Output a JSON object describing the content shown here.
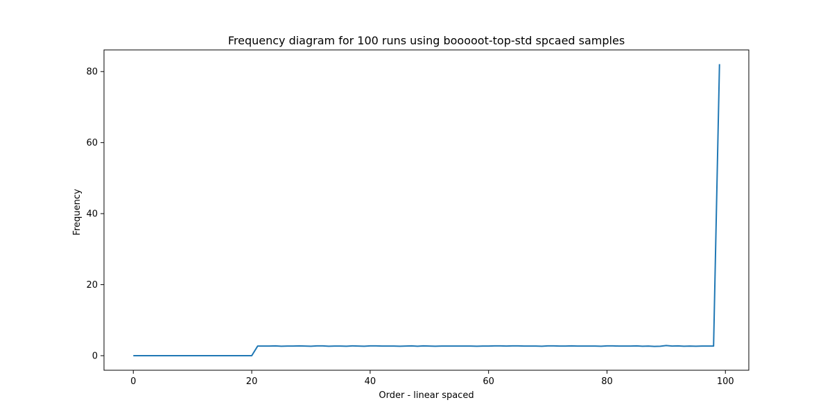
{
  "chart_data": {
    "type": "line",
    "title": "Frequency diagram for 100 runs using booooot-top-std spcaed samples",
    "xlabel": "Order - linear spaced",
    "ylabel": "Frequency",
    "xlim": [
      -4.95,
      103.95
    ],
    "ylim": [
      -4.1,
      86.1
    ],
    "x_ticks": [
      0,
      20,
      40,
      60,
      80,
      100
    ],
    "y_ticks": [
      0,
      20,
      40,
      60,
      80
    ],
    "grid": false,
    "legend": "none",
    "series": [
      {
        "color": "#1f77b4",
        "x": [
          0,
          1,
          2,
          3,
          4,
          5,
          6,
          7,
          8,
          9,
          10,
          11,
          12,
          13,
          14,
          15,
          16,
          17,
          18,
          19,
          20,
          21,
          22,
          23,
          24,
          25,
          26,
          27,
          28,
          29,
          30,
          31,
          32,
          33,
          34,
          35,
          36,
          37,
          38,
          39,
          40,
          41,
          42,
          43,
          44,
          45,
          46,
          47,
          48,
          49,
          50,
          51,
          52,
          53,
          54,
          55,
          56,
          57,
          58,
          59,
          60,
          61,
          62,
          63,
          64,
          65,
          66,
          67,
          68,
          69,
          70,
          71,
          72,
          73,
          74,
          75,
          76,
          77,
          78,
          79,
          80,
          81,
          82,
          83,
          84,
          85,
          86,
          87,
          88,
          89,
          90,
          91,
          92,
          93,
          94,
          95,
          96,
          97,
          98,
          99
        ],
        "y": [
          0,
          0,
          0,
          0,
          0,
          0,
          0,
          0,
          0,
          0,
          0,
          0,
          0,
          0,
          0,
          0,
          0,
          0,
          0,
          0,
          0,
          2.7,
          2.7,
          2.7,
          2.75,
          2.65,
          2.7,
          2.7,
          2.75,
          2.7,
          2.65,
          2.75,
          2.75,
          2.65,
          2.7,
          2.7,
          2.65,
          2.75,
          2.7,
          2.65,
          2.75,
          2.75,
          2.7,
          2.7,
          2.7,
          2.65,
          2.7,
          2.75,
          2.65,
          2.75,
          2.7,
          2.65,
          2.7,
          2.7,
          2.7,
          2.7,
          2.7,
          2.7,
          2.65,
          2.7,
          2.7,
          2.75,
          2.75,
          2.7,
          2.75,
          2.75,
          2.7,
          2.7,
          2.7,
          2.65,
          2.75,
          2.75,
          2.7,
          2.7,
          2.75,
          2.7,
          2.7,
          2.7,
          2.7,
          2.65,
          2.75,
          2.75,
          2.7,
          2.7,
          2.7,
          2.75,
          2.65,
          2.7,
          2.6,
          2.65,
          2.85,
          2.7,
          2.75,
          2.65,
          2.7,
          2.65,
          2.7,
          2.7,
          2.7,
          82.1
        ]
      }
    ]
  }
}
